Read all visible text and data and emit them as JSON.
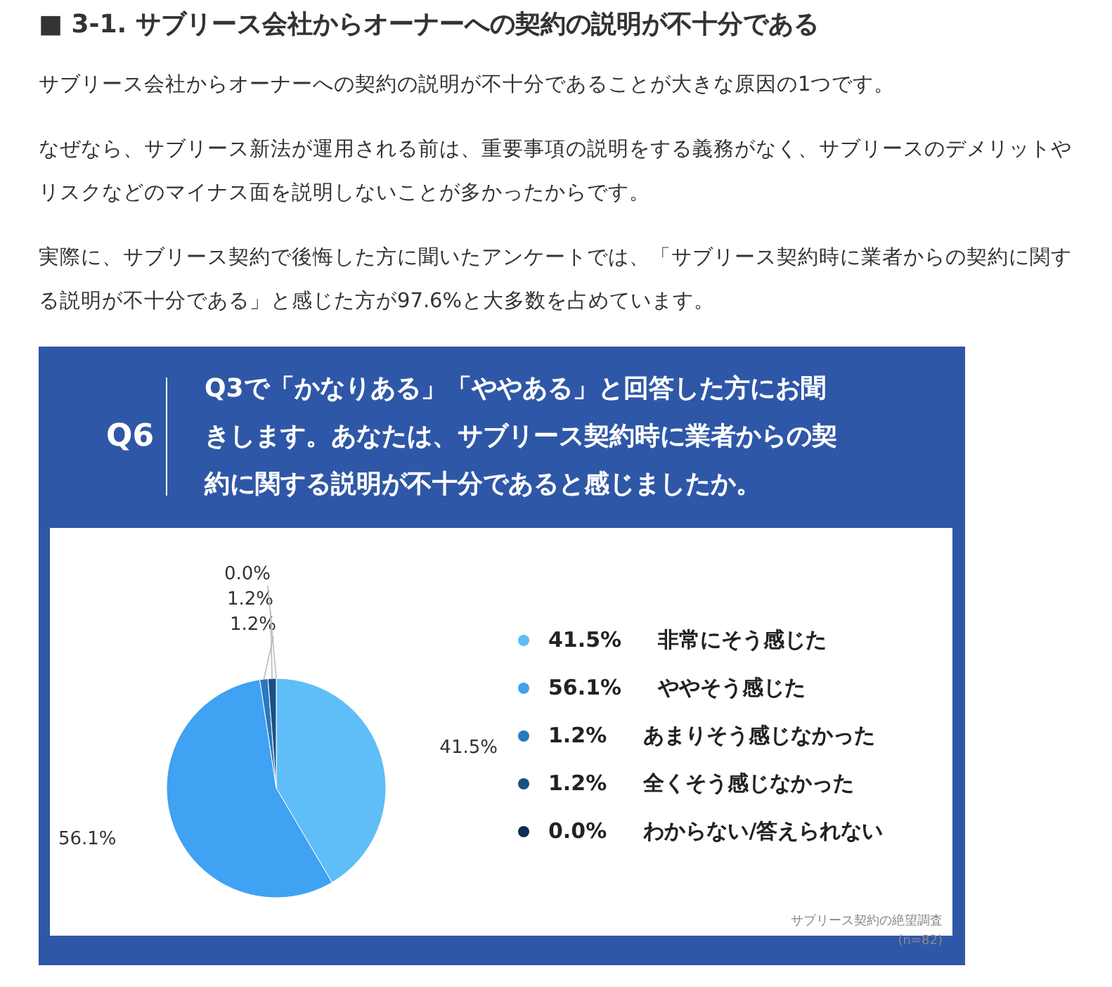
{
  "chart_data": {
    "type": "pie",
    "title": "■ 3-1. サブリース会社からオーナーへの契約の説明が不十分である",
    "annotations": [
      "サブリース会社からオーナーへの契約の説明が不十分であることが大きな原因の1つです。",
      "なぜなら、サブリース新法が運用される前は、重要事項の説明をする義務がなく、サブリースのデメリットやリスクなどのマイナス面を説明しないことが多かったからです。",
      "実際に、サブリース契約で後悔した方に聞いたアンケートでは、「サブリース契約時に業者からの契約に関する説明が不十分である」と感じた方が97.6%と大多数を占めています。",
      "Q6",
      "Q3で「かなりある」「ややある」と回答した方にお聞きします。あなたは、サブリース契約時に業者からの契約に関する説明が不十分であると感じましたか。",
      "サブリース契約の絶望調査",
      "(n=82)"
    ],
    "categories": [
      "非常にそう感じた",
      "ややそう感じた",
      "あまりそう感じなかった",
      "全くそう感じなかった",
      "わからない/答えられない"
    ],
    "values": [
      41.5,
      56.1,
      1.2,
      1.2,
      0.0
    ],
    "value_labels": [
      "41.5%",
      "56.1%",
      "1.2%",
      "1.2%",
      "0.0%"
    ],
    "colors": [
      "#5fbdf7",
      "#3fa2f2",
      "#2b78bd",
      "#1b4f82",
      "#0f2d55"
    ],
    "data_labels": true,
    "legend": "right"
  }
}
